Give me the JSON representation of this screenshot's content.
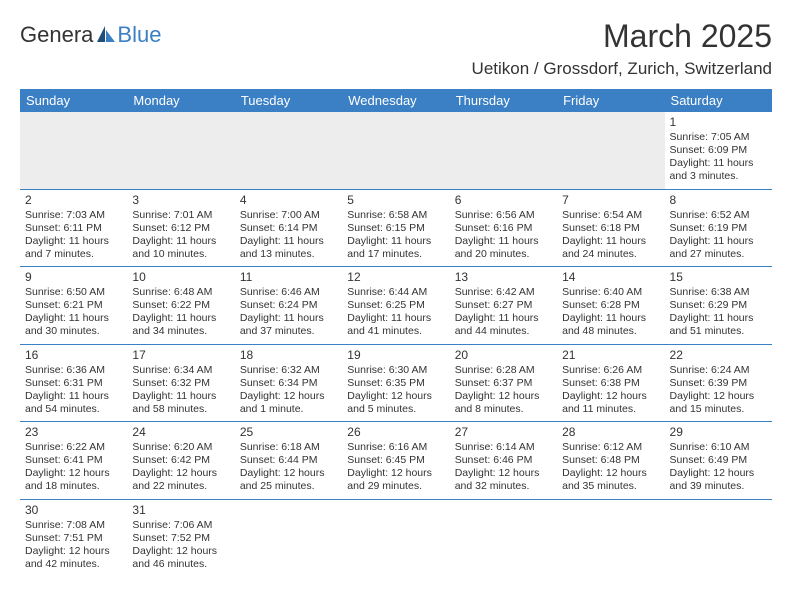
{
  "logo": {
    "main": "Genera",
    "sub": "Blue",
    "main_color": "#333333",
    "sub_color": "#3b7fc4"
  },
  "title": "March 2025",
  "location": "Uetikon / Grossdorf, Zurich, Switzerland",
  "header_bg": "#3b7fc4",
  "header_fg": "#ffffff",
  "blank_bg": "#ededed",
  "border_color": "#3b7fc4",
  "day_labels": [
    "Sunday",
    "Monday",
    "Tuesday",
    "Wednesday",
    "Thursday",
    "Friday",
    "Saturday"
  ],
  "weeks": [
    [
      null,
      null,
      null,
      null,
      null,
      null,
      {
        "n": "1",
        "sunrise": "Sunrise: 7:05 AM",
        "sunset": "Sunset: 6:09 PM",
        "daylight": "Daylight: 11 hours and 3 minutes."
      }
    ],
    [
      {
        "n": "2",
        "sunrise": "Sunrise: 7:03 AM",
        "sunset": "Sunset: 6:11 PM",
        "daylight": "Daylight: 11 hours and 7 minutes."
      },
      {
        "n": "3",
        "sunrise": "Sunrise: 7:01 AM",
        "sunset": "Sunset: 6:12 PM",
        "daylight": "Daylight: 11 hours and 10 minutes."
      },
      {
        "n": "4",
        "sunrise": "Sunrise: 7:00 AM",
        "sunset": "Sunset: 6:14 PM",
        "daylight": "Daylight: 11 hours and 13 minutes."
      },
      {
        "n": "5",
        "sunrise": "Sunrise: 6:58 AM",
        "sunset": "Sunset: 6:15 PM",
        "daylight": "Daylight: 11 hours and 17 minutes."
      },
      {
        "n": "6",
        "sunrise": "Sunrise: 6:56 AM",
        "sunset": "Sunset: 6:16 PM",
        "daylight": "Daylight: 11 hours and 20 minutes."
      },
      {
        "n": "7",
        "sunrise": "Sunrise: 6:54 AM",
        "sunset": "Sunset: 6:18 PM",
        "daylight": "Daylight: 11 hours and 24 minutes."
      },
      {
        "n": "8",
        "sunrise": "Sunrise: 6:52 AM",
        "sunset": "Sunset: 6:19 PM",
        "daylight": "Daylight: 11 hours and 27 minutes."
      }
    ],
    [
      {
        "n": "9",
        "sunrise": "Sunrise: 6:50 AM",
        "sunset": "Sunset: 6:21 PM",
        "daylight": "Daylight: 11 hours and 30 minutes."
      },
      {
        "n": "10",
        "sunrise": "Sunrise: 6:48 AM",
        "sunset": "Sunset: 6:22 PM",
        "daylight": "Daylight: 11 hours and 34 minutes."
      },
      {
        "n": "11",
        "sunrise": "Sunrise: 6:46 AM",
        "sunset": "Sunset: 6:24 PM",
        "daylight": "Daylight: 11 hours and 37 minutes."
      },
      {
        "n": "12",
        "sunrise": "Sunrise: 6:44 AM",
        "sunset": "Sunset: 6:25 PM",
        "daylight": "Daylight: 11 hours and 41 minutes."
      },
      {
        "n": "13",
        "sunrise": "Sunrise: 6:42 AM",
        "sunset": "Sunset: 6:27 PM",
        "daylight": "Daylight: 11 hours and 44 minutes."
      },
      {
        "n": "14",
        "sunrise": "Sunrise: 6:40 AM",
        "sunset": "Sunset: 6:28 PM",
        "daylight": "Daylight: 11 hours and 48 minutes."
      },
      {
        "n": "15",
        "sunrise": "Sunrise: 6:38 AM",
        "sunset": "Sunset: 6:29 PM",
        "daylight": "Daylight: 11 hours and 51 minutes."
      }
    ],
    [
      {
        "n": "16",
        "sunrise": "Sunrise: 6:36 AM",
        "sunset": "Sunset: 6:31 PM",
        "daylight": "Daylight: 11 hours and 54 minutes."
      },
      {
        "n": "17",
        "sunrise": "Sunrise: 6:34 AM",
        "sunset": "Sunset: 6:32 PM",
        "daylight": "Daylight: 11 hours and 58 minutes."
      },
      {
        "n": "18",
        "sunrise": "Sunrise: 6:32 AM",
        "sunset": "Sunset: 6:34 PM",
        "daylight": "Daylight: 12 hours and 1 minute."
      },
      {
        "n": "19",
        "sunrise": "Sunrise: 6:30 AM",
        "sunset": "Sunset: 6:35 PM",
        "daylight": "Daylight: 12 hours and 5 minutes."
      },
      {
        "n": "20",
        "sunrise": "Sunrise: 6:28 AM",
        "sunset": "Sunset: 6:37 PM",
        "daylight": "Daylight: 12 hours and 8 minutes."
      },
      {
        "n": "21",
        "sunrise": "Sunrise: 6:26 AM",
        "sunset": "Sunset: 6:38 PM",
        "daylight": "Daylight: 12 hours and 11 minutes."
      },
      {
        "n": "22",
        "sunrise": "Sunrise: 6:24 AM",
        "sunset": "Sunset: 6:39 PM",
        "daylight": "Daylight: 12 hours and 15 minutes."
      }
    ],
    [
      {
        "n": "23",
        "sunrise": "Sunrise: 6:22 AM",
        "sunset": "Sunset: 6:41 PM",
        "daylight": "Daylight: 12 hours and 18 minutes."
      },
      {
        "n": "24",
        "sunrise": "Sunrise: 6:20 AM",
        "sunset": "Sunset: 6:42 PM",
        "daylight": "Daylight: 12 hours and 22 minutes."
      },
      {
        "n": "25",
        "sunrise": "Sunrise: 6:18 AM",
        "sunset": "Sunset: 6:44 PM",
        "daylight": "Daylight: 12 hours and 25 minutes."
      },
      {
        "n": "26",
        "sunrise": "Sunrise: 6:16 AM",
        "sunset": "Sunset: 6:45 PM",
        "daylight": "Daylight: 12 hours and 29 minutes."
      },
      {
        "n": "27",
        "sunrise": "Sunrise: 6:14 AM",
        "sunset": "Sunset: 6:46 PM",
        "daylight": "Daylight: 12 hours and 32 minutes."
      },
      {
        "n": "28",
        "sunrise": "Sunrise: 6:12 AM",
        "sunset": "Sunset: 6:48 PM",
        "daylight": "Daylight: 12 hours and 35 minutes."
      },
      {
        "n": "29",
        "sunrise": "Sunrise: 6:10 AM",
        "sunset": "Sunset: 6:49 PM",
        "daylight": "Daylight: 12 hours and 39 minutes."
      }
    ],
    [
      {
        "n": "30",
        "sunrise": "Sunrise: 7:08 AM",
        "sunset": "Sunset: 7:51 PM",
        "daylight": "Daylight: 12 hours and 42 minutes."
      },
      {
        "n": "31",
        "sunrise": "Sunrise: 7:06 AM",
        "sunset": "Sunset: 7:52 PM",
        "daylight": "Daylight: 12 hours and 46 minutes."
      },
      null,
      null,
      null,
      null,
      null
    ]
  ]
}
